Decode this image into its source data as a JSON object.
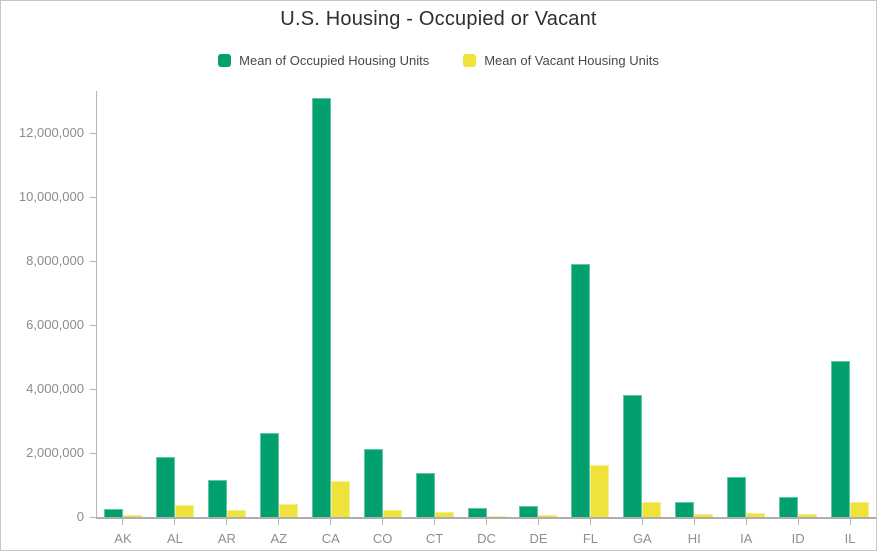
{
  "title": "U.S. Housing - Occupied or Vacant",
  "legend": {
    "items": [
      {
        "id": "occupied",
        "label": "Mean of Occupied Housing Units",
        "color": "#02a06e"
      },
      {
        "id": "vacant",
        "label": "Mean of Vacant Housing Units",
        "color": "#efe23b"
      }
    ]
  },
  "colors": {
    "occupied_fill": "#02a06e",
    "occupied_border": "#5fc5ab",
    "vacant_fill": "#efe23b",
    "vacant_border": "#f5ee8e",
    "axis_line": "#b5b5b5",
    "tick_label": "#8c8c8c",
    "title_text": "#2f2f2f"
  },
  "chart_data": {
    "type": "bar",
    "title": "U.S. Housing - Occupied or Vacant",
    "xlabel": "",
    "ylabel": "",
    "grid": false,
    "legend_position": "top",
    "categories": [
      "AK",
      "AL",
      "AR",
      "AZ",
      "CA",
      "CO",
      "CT",
      "DC",
      "DE",
      "FL",
      "GA",
      "HI",
      "IA",
      "ID",
      "IL"
    ],
    "series": [
      {
        "name": "Mean of Occupied Housing Units",
        "color": "#02a06e",
        "border": "#5fc5ab",
        "values": [
          260000,
          1870000,
          1160000,
          2640000,
          13100000,
          2120000,
          1390000,
          280000,
          350000,
          7920000,
          3820000,
          460000,
          1260000,
          640000,
          4870000
        ]
      },
      {
        "name": "Mean of Vacant Housing Units",
        "color": "#efe23b",
        "border": "#f5ee8e",
        "values": [
          70000,
          390000,
          210000,
          400000,
          1120000,
          220000,
          150000,
          40000,
          55000,
          1620000,
          480000,
          80000,
          140000,
          80000,
          480000
        ]
      }
    ],
    "ylim": [
      0,
      13312500
    ],
    "yticks": [
      0,
      2000000,
      4000000,
      6000000,
      8000000,
      10000000,
      12000000
    ],
    "ytick_labels": [
      "0",
      "2,000,000",
      "4,000,000",
      "6,000,000",
      "8,000,000",
      "10,000,000",
      "12,000,000"
    ]
  }
}
